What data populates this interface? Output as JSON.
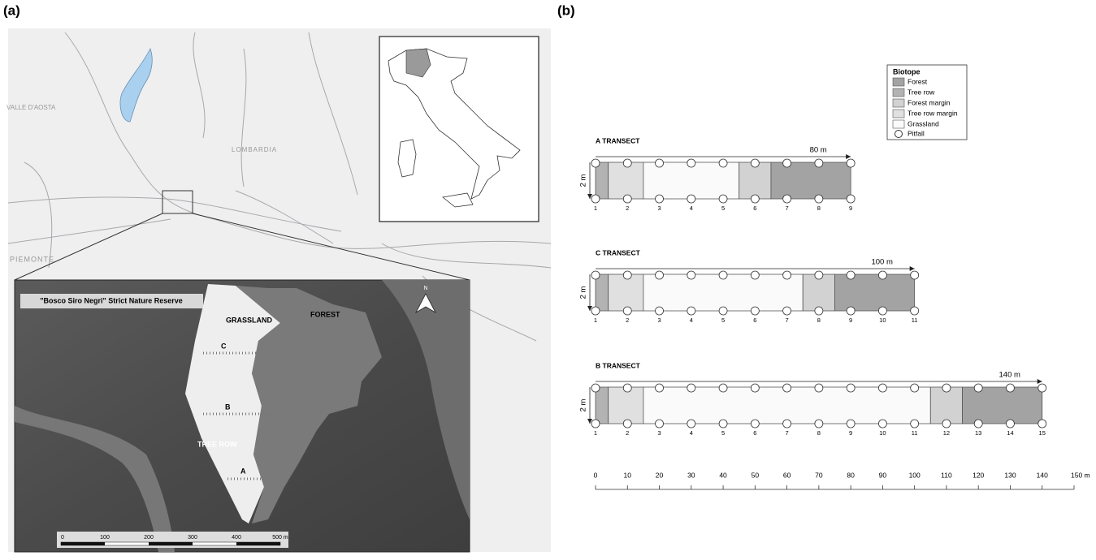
{
  "panel_a": {
    "label": "(a)",
    "map": {
      "regions": [
        "VALLE D'AOSTA",
        "LOMBARDIA",
        "PIEMONTE"
      ],
      "reserve_title": "\"Bosco Siro Negri\" Strict Nature Reserve",
      "zones": [
        "GRASSLAND",
        "FOREST",
        "TREE ROW"
      ],
      "transect_letters": [
        "C",
        "B",
        "A"
      ],
      "north": "N",
      "scale_bar": [
        "0",
        "100",
        "200",
        "300",
        "400",
        "500 m"
      ]
    }
  },
  "panel_b": {
    "label": "(b)",
    "legend": {
      "title": "Biotope",
      "items": [
        {
          "name": "Forest",
          "color": "#a3a3a3"
        },
        {
          "name": "Tree row",
          "color": "#b3b3b3"
        },
        {
          "name": "Forest margin",
          "color": "#d2d2d2"
        },
        {
          "name": "Tree row margin",
          "color": "#e0e0e0"
        },
        {
          "name": "Grassland",
          "color": "#fafafa"
        }
      ],
      "pitfall": "Pitfall"
    },
    "transects": [
      {
        "title": "A TRANSECT",
        "length": 80,
        "length_label": "80 m",
        "width_label": "2 m",
        "pitfalls": [
          1,
          2,
          3,
          4,
          5,
          6,
          7,
          8,
          9
        ],
        "segments": [
          {
            "biotope": 1,
            "from": 0,
            "to": 4
          },
          {
            "biotope": 3,
            "from": 4,
            "to": 15
          },
          {
            "biotope": 4,
            "from": 15,
            "to": 45
          },
          {
            "biotope": 2,
            "from": 45,
            "to": 55
          },
          {
            "biotope": 0,
            "from": 55,
            "to": 80
          }
        ]
      },
      {
        "title": "C TRANSECT",
        "length": 100,
        "length_label": "100 m",
        "width_label": "2 m",
        "pitfalls": [
          1,
          2,
          3,
          4,
          5,
          6,
          7,
          8,
          9,
          10,
          11
        ],
        "segments": [
          {
            "biotope": 1,
            "from": 0,
            "to": 4
          },
          {
            "biotope": 3,
            "from": 4,
            "to": 15
          },
          {
            "biotope": 4,
            "from": 15,
            "to": 65
          },
          {
            "biotope": 2,
            "from": 65,
            "to": 75
          },
          {
            "biotope": 0,
            "from": 75,
            "to": 100
          }
        ]
      },
      {
        "title": "B TRANSECT",
        "length": 140,
        "length_label": "140 m",
        "width_label": "2 m",
        "pitfalls": [
          1,
          2,
          3,
          4,
          5,
          6,
          7,
          8,
          9,
          10,
          11,
          12,
          13,
          14,
          15
        ],
        "segments": [
          {
            "biotope": 1,
            "from": 0,
            "to": 4
          },
          {
            "biotope": 3,
            "from": 4,
            "to": 15
          },
          {
            "biotope": 4,
            "from": 15,
            "to": 105
          },
          {
            "biotope": 2,
            "from": 105,
            "to": 115
          },
          {
            "biotope": 0,
            "from": 115,
            "to": 140
          }
        ]
      }
    ],
    "scale": {
      "lim": [
        0,
        150
      ],
      "ticks": [
        0,
        10,
        20,
        30,
        40,
        50,
        60,
        70,
        80,
        90,
        100,
        110,
        120,
        130,
        140,
        {
          "value": 150,
          "label": "150 m"
        }
      ]
    }
  }
}
